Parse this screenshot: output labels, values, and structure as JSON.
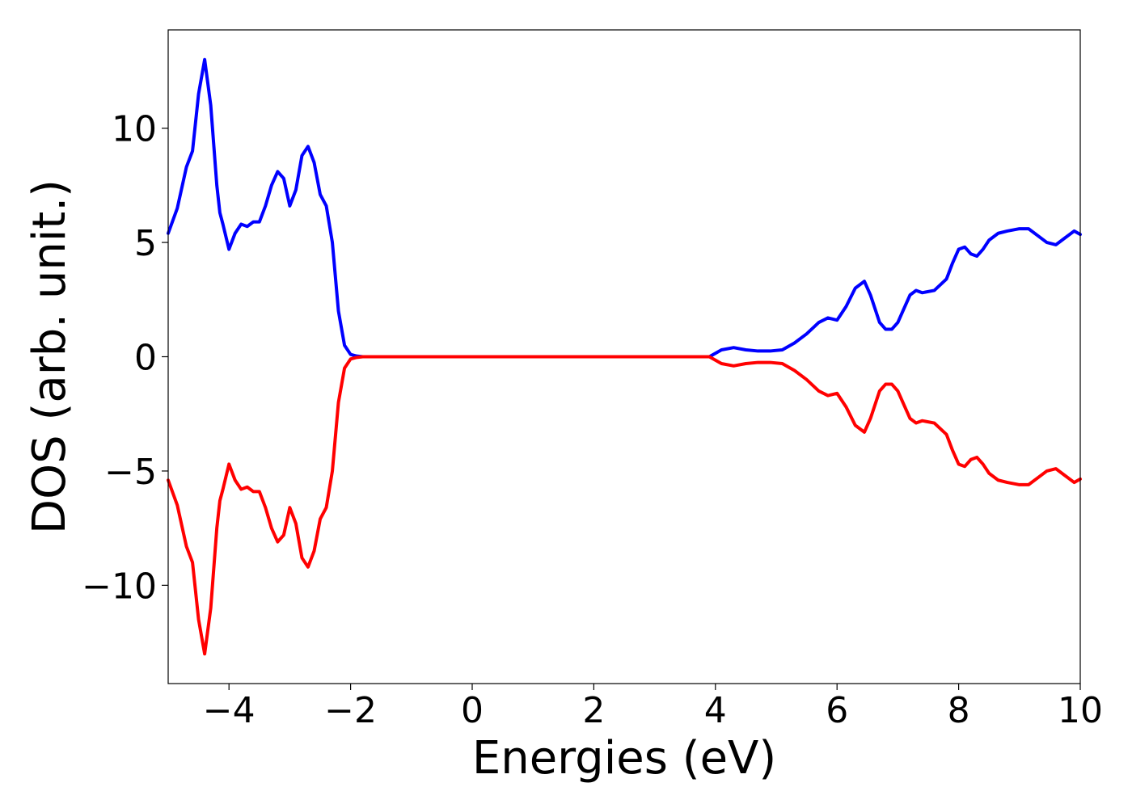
{
  "chart_data": {
    "type": "line",
    "title": "",
    "xlabel": "Energies (eV)",
    "ylabel": "DOS (arb. unit.)",
    "xlim": [
      -5,
      10
    ],
    "ylim": [
      -14.3,
      14.3
    ],
    "xticks": [
      -4,
      -2,
      0,
      2,
      4,
      6,
      8,
      10
    ],
    "xtick_labels": [
      "−4",
      "−2",
      "0",
      "2",
      "4",
      "6",
      "8",
      "10"
    ],
    "yticks": [
      -10,
      -5,
      0,
      5,
      10
    ],
    "ytick_labels": [
      "−10",
      "−5",
      "0",
      "5",
      "10"
    ],
    "grid": false,
    "legend": "none",
    "series": [
      {
        "color": "#0000ff",
        "x": [
          -5.0,
          -4.85,
          -4.7,
          -4.6,
          -4.5,
          -4.4,
          -4.3,
          -4.2,
          -4.15,
          -4.1,
          -4.0,
          -3.9,
          -3.8,
          -3.7,
          -3.6,
          -3.5,
          -3.4,
          -3.3,
          -3.2,
          -3.1,
          -3.0,
          -2.9,
          -2.8,
          -2.7,
          -2.6,
          -2.5,
          -2.4,
          -2.3,
          -2.2,
          -2.1,
          -2.0,
          -1.9,
          -1.8,
          -1.7,
          -1.6,
          -1.5,
          -1.4,
          -1.3,
          -1.2,
          -1.1,
          -1.0,
          -0.95,
          -0.9,
          -0.85,
          -0.8,
          -0.75,
          -0.7,
          -0.65,
          -0.6,
          -0.5,
          -0.4,
          0.0,
          2.0,
          3.9,
          4.1,
          4.3,
          4.5,
          4.7,
          4.9,
          5.1,
          5.3,
          5.5,
          5.7,
          5.85,
          6.0,
          6.15,
          6.3,
          6.45,
          6.55,
          6.7,
          6.8,
          6.9,
          7.0,
          7.1,
          7.2,
          7.3,
          7.4,
          7.6,
          7.8,
          7.9,
          8.0,
          8.1,
          8.2,
          8.3,
          8.4,
          8.5,
          8.65,
          8.8,
          9.0,
          9.15,
          9.3,
          9.45,
          9.6,
          9.75,
          9.9,
          10.0
        ],
        "y": [
          5.4,
          6.5,
          8.3,
          9.0,
          11.5,
          13.0,
          11.0,
          7.5,
          6.3,
          5.8,
          4.7,
          5.4,
          5.8,
          5.7,
          5.9,
          5.9,
          6.6,
          7.5,
          8.1,
          7.8,
          6.6,
          7.3,
          8.8,
          9.2,
          8.5,
          7.1,
          6.6,
          5.0,
          2.0,
          0.5,
          0.1,
          0.03,
          0.0,
          0.0,
          0.0,
          0.0,
          0.0,
          0.0,
          0.0,
          0.0,
          0.0,
          0.0,
          0.0,
          0.0,
          0.0,
          0.0,
          0.0,
          0.0,
          0.0,
          0.0,
          0.0,
          0.0,
          0.0,
          0.0,
          0.3,
          0.4,
          0.3,
          0.25,
          0.25,
          0.3,
          0.6,
          1.0,
          1.5,
          1.7,
          1.6,
          2.2,
          3.0,
          3.3,
          2.7,
          1.5,
          1.2,
          1.2,
          1.5,
          2.1,
          2.7,
          2.9,
          2.8,
          2.9,
          3.4,
          4.1,
          4.7,
          4.8,
          4.5,
          4.4,
          4.7,
          5.1,
          5.4,
          5.5,
          5.6,
          5.6,
          5.3,
          5.0,
          4.9,
          5.2,
          5.5,
          5.35
        ]
      },
      {
        "color": "#ff0000",
        "x": [
          -5.0,
          -4.85,
          -4.7,
          -4.6,
          -4.5,
          -4.4,
          -4.3,
          -4.2,
          -4.15,
          -4.1,
          -4.0,
          -3.9,
          -3.8,
          -3.7,
          -3.6,
          -3.5,
          -3.4,
          -3.3,
          -3.2,
          -3.1,
          -3.0,
          -2.9,
          -2.8,
          -2.7,
          -2.6,
          -2.5,
          -2.4,
          -2.3,
          -2.2,
          -2.1,
          -2.0,
          -1.9,
          -1.8,
          -1.7,
          -1.6,
          -1.5,
          -1.4,
          -1.3,
          -1.2,
          -1.1,
          -1.0,
          -0.95,
          -0.9,
          -0.85,
          -0.8,
          -0.75,
          -0.7,
          -0.65,
          -0.6,
          -0.5,
          -0.4,
          0.0,
          2.0,
          3.9,
          4.1,
          4.3,
          4.5,
          4.7,
          4.9,
          5.1,
          5.3,
          5.5,
          5.7,
          5.85,
          6.0,
          6.15,
          6.3,
          6.45,
          6.55,
          6.7,
          6.8,
          6.9,
          7.0,
          7.1,
          7.2,
          7.3,
          7.4,
          7.6,
          7.8,
          7.9,
          8.0,
          8.1,
          8.2,
          8.3,
          8.4,
          8.5,
          8.65,
          8.8,
          9.0,
          9.15,
          9.3,
          9.45,
          9.6,
          9.75,
          9.9,
          10.0
        ],
        "y": [
          -5.4,
          -6.5,
          -8.3,
          -9.0,
          -11.5,
          -13.0,
          -11.0,
          -7.5,
          -6.3,
          -5.8,
          -4.7,
          -5.4,
          -5.8,
          -5.7,
          -5.9,
          -5.9,
          -6.6,
          -7.5,
          -8.1,
          -7.8,
          -6.6,
          -7.3,
          -8.8,
          -9.2,
          -8.5,
          -7.1,
          -6.6,
          -5.0,
          -2.0,
          -0.5,
          -0.1,
          -0.03,
          0.0,
          0.0,
          0.0,
          0.0,
          0.0,
          0.0,
          0.0,
          0.0,
          0.0,
          0.0,
          0.0,
          0.0,
          0.0,
          0.0,
          0.0,
          0.0,
          0.0,
          0.0,
          0.0,
          0.0,
          0.0,
          0.0,
          -0.3,
          -0.4,
          -0.3,
          -0.25,
          -0.25,
          -0.3,
          -0.6,
          -1.0,
          -1.5,
          -1.7,
          -1.6,
          -2.2,
          -3.0,
          -3.3,
          -2.7,
          -1.5,
          -1.2,
          -1.2,
          -1.5,
          -2.1,
          -2.7,
          -2.9,
          -2.8,
          -2.9,
          -3.4,
          -4.1,
          -4.7,
          -4.8,
          -4.5,
          -4.4,
          -4.7,
          -5.1,
          -5.4,
          -5.5,
          -5.6,
          -5.6,
          -5.3,
          -5.0,
          -4.9,
          -5.2,
          -5.5,
          -5.35
        ]
      }
    ]
  }
}
